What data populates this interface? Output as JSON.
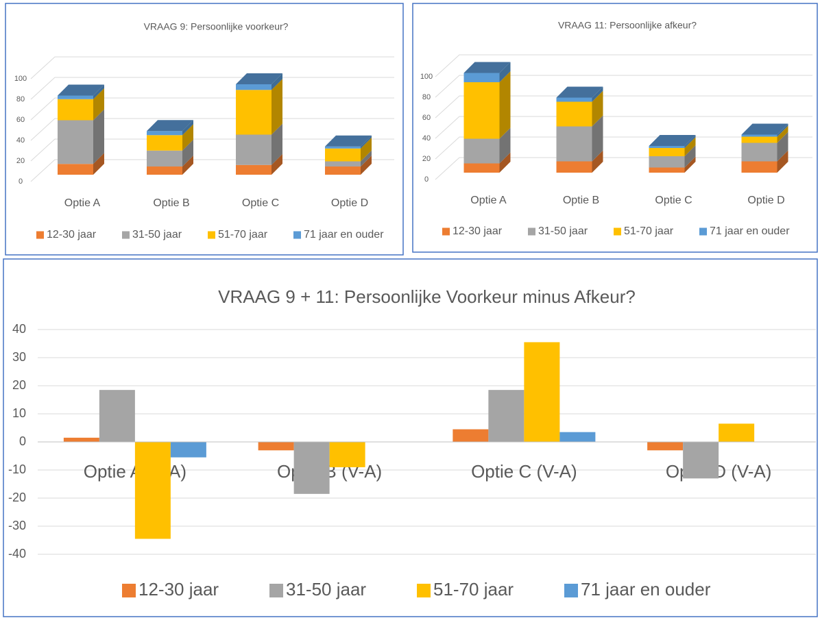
{
  "chart_data": [
    {
      "type": "bar",
      "stacked": true,
      "title": "VRAAG 9: Persoonlijke voorkeur?",
      "categories": [
        "Optie A",
        "Optie B",
        "Optie C",
        "Optie D"
      ],
      "series": [
        {
          "name": "12-30 jaar",
          "color": "#ed7d31",
          "values": [
            10.5,
            8,
            9.5,
            8
          ]
        },
        {
          "name": "31-50 jaar",
          "color": "#a5a5a5",
          "values": [
            42.5,
            15.5,
            29.5,
            5
          ]
        },
        {
          "name": "51-70 jaar",
          "color": "#ffc000",
          "values": [
            20.5,
            15,
            43.5,
            12.5
          ]
        },
        {
          "name": "71 jaar en ouder",
          "color": "#5b9bd5",
          "values": [
            3.5,
            4,
            5.5,
            2
          ]
        }
      ],
      "ylim": [
        0,
        100
      ],
      "yticks": [
        0,
        20,
        40,
        60,
        80,
        100
      ],
      "grid": true,
      "legend": "bottom"
    },
    {
      "type": "bar",
      "stacked": true,
      "title": "VRAAG 11: Persoonlijke afkeur?",
      "categories": [
        "Optie A",
        "Optie B",
        "Optie C",
        "Optie D"
      ],
      "series": [
        {
          "name": "12-30 jaar",
          "color": "#ed7d31",
          "values": [
            9,
            11,
            5,
            11
          ]
        },
        {
          "name": "31-50 jaar",
          "color": "#a5a5a5",
          "values": [
            24,
            34,
            11,
            18
          ]
        },
        {
          "name": "51-70 jaar",
          "color": "#ffc000",
          "values": [
            55,
            24,
            8,
            6
          ]
        },
        {
          "name": "71 jaar en ouder",
          "color": "#5b9bd5",
          "values": [
            9,
            4,
            2,
            2
          ]
        }
      ],
      "ylim": [
        0,
        100
      ],
      "yticks": [
        0,
        20,
        40,
        60,
        80,
        100
      ],
      "grid": true,
      "legend": "bottom"
    },
    {
      "type": "bar",
      "stacked": false,
      "title": "VRAAG 9 + 11: Persoonlijke Voorkeur minus Afkeur?",
      "categories": [
        "Optie A  (V-A)",
        "Optie B  (V-A)",
        "Optie C  (V-A)",
        "Optie D  (V-A)"
      ],
      "series": [
        {
          "name": "12-30 jaar",
          "color": "#ed7d31",
          "values": [
            1.5,
            -3,
            4.5,
            -3
          ]
        },
        {
          "name": "31-50 jaar",
          "color": "#a5a5a5",
          "values": [
            18.5,
            -18.5,
            18.5,
            -13
          ]
        },
        {
          "name": "51-70 jaar",
          "color": "#ffc000",
          "values": [
            -34.5,
            -9,
            35.5,
            6.5
          ]
        },
        {
          "name": "71 jaar en ouder",
          "color": "#5b9bd5",
          "values": [
            -5.5,
            0,
            3.5,
            0
          ]
        }
      ],
      "ylim": [
        -40,
        40
      ],
      "yticks": [
        40,
        30,
        20,
        10,
        0,
        -10,
        -20,
        -30,
        -40
      ],
      "grid": true,
      "legend": "bottom"
    }
  ]
}
